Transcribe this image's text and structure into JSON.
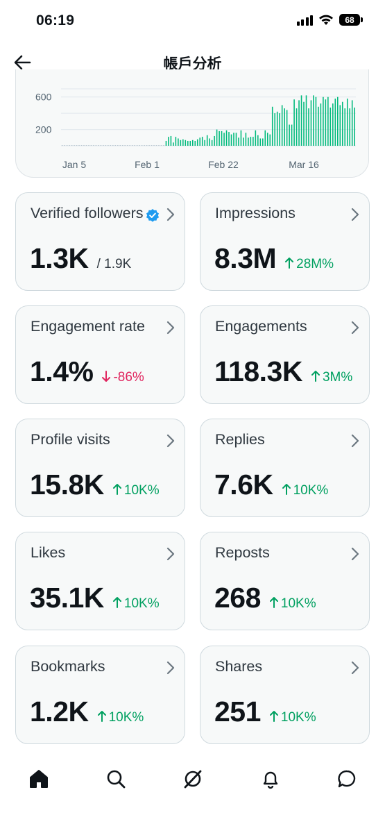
{
  "status_bar": {
    "time": "06:19",
    "battery": "68"
  },
  "header": {
    "title": "帳戶分析"
  },
  "chart_data": {
    "type": "bar",
    "y_ticks": [
      "600",
      "200"
    ],
    "x_ticks": [
      "Jan 5",
      "Feb 1",
      "Feb 22",
      "Mar 16"
    ],
    "accent_color": "#00ba7c",
    "values": [
      2,
      3,
      2,
      2,
      2,
      2,
      2,
      2,
      3,
      2,
      2,
      2,
      2,
      2,
      3,
      2,
      2,
      2,
      2,
      2,
      2,
      2,
      2,
      2,
      2,
      2,
      2,
      2,
      2,
      2,
      2,
      3,
      2,
      2,
      2,
      2,
      2,
      2,
      2,
      2,
      2,
      2,
      2,
      60,
      110,
      120,
      40,
      110,
      90,
      70,
      80,
      70,
      60,
      60,
      70,
      60,
      80,
      100,
      110,
      70,
      130,
      90,
      70,
      120,
      200,
      180,
      180,
      160,
      190,
      170,
      140,
      160,
      160,
      100,
      190,
      100,
      160,
      100,
      110,
      110,
      190,
      130,
      90,
      90,
      190,
      160,
      140,
      480,
      400,
      420,
      400,
      500,
      460,
      440,
      260,
      260,
      570,
      460,
      560,
      620,
      540,
      620,
      460,
      560,
      620,
      600,
      480,
      520,
      600,
      570,
      600,
      470,
      520,
      580,
      600,
      500,
      540,
      460,
      580,
      460,
      560,
      470
    ]
  },
  "cards": [
    {
      "label": "Verified followers",
      "value": "1.3K",
      "sub": "/ 1.9K",
      "verified": true
    },
    {
      "label": "Impressions",
      "value": "8.3M",
      "delta": "28M%",
      "direction": "up"
    },
    {
      "label": "Engagement rate",
      "value": "1.4%",
      "delta": "-86%",
      "direction": "down"
    },
    {
      "label": "Engagements",
      "value": "118.3K",
      "delta": "3M%",
      "direction": "up"
    },
    {
      "label": "Profile visits",
      "value": "15.8K",
      "delta": "10K%",
      "direction": "up"
    },
    {
      "label": "Replies",
      "value": "7.6K",
      "delta": "10K%",
      "direction": "up"
    },
    {
      "label": "Likes",
      "value": "35.1K",
      "delta": "10K%",
      "direction": "up"
    },
    {
      "label": "Reposts",
      "value": "268",
      "delta": "10K%",
      "direction": "up"
    },
    {
      "label": "Bookmarks",
      "value": "1.2K",
      "delta": "10K%",
      "direction": "up"
    },
    {
      "label": "Shares",
      "value": "251",
      "delta": "10K%",
      "direction": "up"
    }
  ],
  "tab_bar": {
    "items": [
      "home",
      "search",
      "grok",
      "notifications",
      "messages"
    ]
  }
}
